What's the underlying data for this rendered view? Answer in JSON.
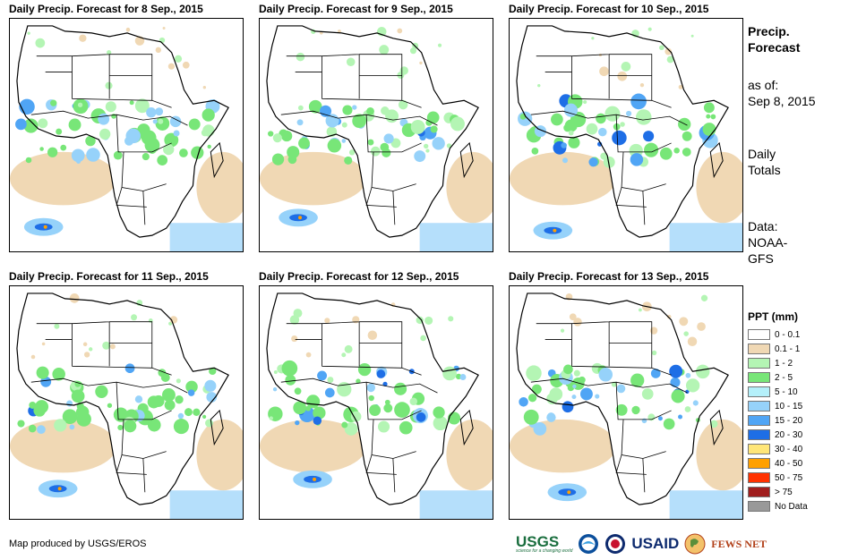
{
  "panels": [
    {
      "title": "Daily Precip. Forecast for 8 Sep., 2015"
    },
    {
      "title": "Daily Precip. Forecast for 9 Sep., 2015"
    },
    {
      "title": "Daily Precip. Forecast for 10 Sep., 2015"
    },
    {
      "title": "Daily Precip. Forecast for 11 Sep., 2015"
    },
    {
      "title": "Daily Precip. Forecast for 12 Sep., 2015"
    },
    {
      "title": "Daily Precip. Forecast for 13 Sep., 2015"
    }
  ],
  "side": {
    "title_line1": "Precip.",
    "title_line2": "Forecast",
    "asof_line1": "as of:",
    "asof_line2": "Sep 8, 2015",
    "totals_line1": "Daily",
    "totals_line2": "Totals",
    "data_line1": "Data:",
    "data_line2": "NOAA-",
    "data_line3": "GFS"
  },
  "legend": {
    "title": "PPT (mm)",
    "items": [
      {
        "label": "0 - 0.1",
        "color": "#ffffff"
      },
      {
        "label": "0.1 - 1",
        "color": "#f0d8b4"
      },
      {
        "label": "1 - 2",
        "color": "#b4f5b4"
      },
      {
        "label": "2 - 5",
        "color": "#78e678"
      },
      {
        "label": "5 - 10",
        "color": "#b4f0fa"
      },
      {
        "label": "10 - 15",
        "color": "#96d2fa"
      },
      {
        "label": "15 - 20",
        "color": "#50a5f5"
      },
      {
        "label": "20 - 30",
        "color": "#1e6ee6"
      },
      {
        "label": "30 - 40",
        "color": "#ffe678"
      },
      {
        "label": "40 - 50",
        "color": "#ffa000"
      },
      {
        "label": "50 - 75",
        "color": "#ff3200"
      },
      {
        "label": "> 75",
        "color": "#a01e1e"
      },
      {
        "label": "No Data",
        "color": "#999999"
      }
    ]
  },
  "footer": {
    "credit": "Map produced by USGS/EROS",
    "logos": {
      "usgs": "USGS",
      "usgs_tagline": "science for a changing world",
      "usaid": "USAID",
      "fews": "FEWS NET"
    }
  }
}
